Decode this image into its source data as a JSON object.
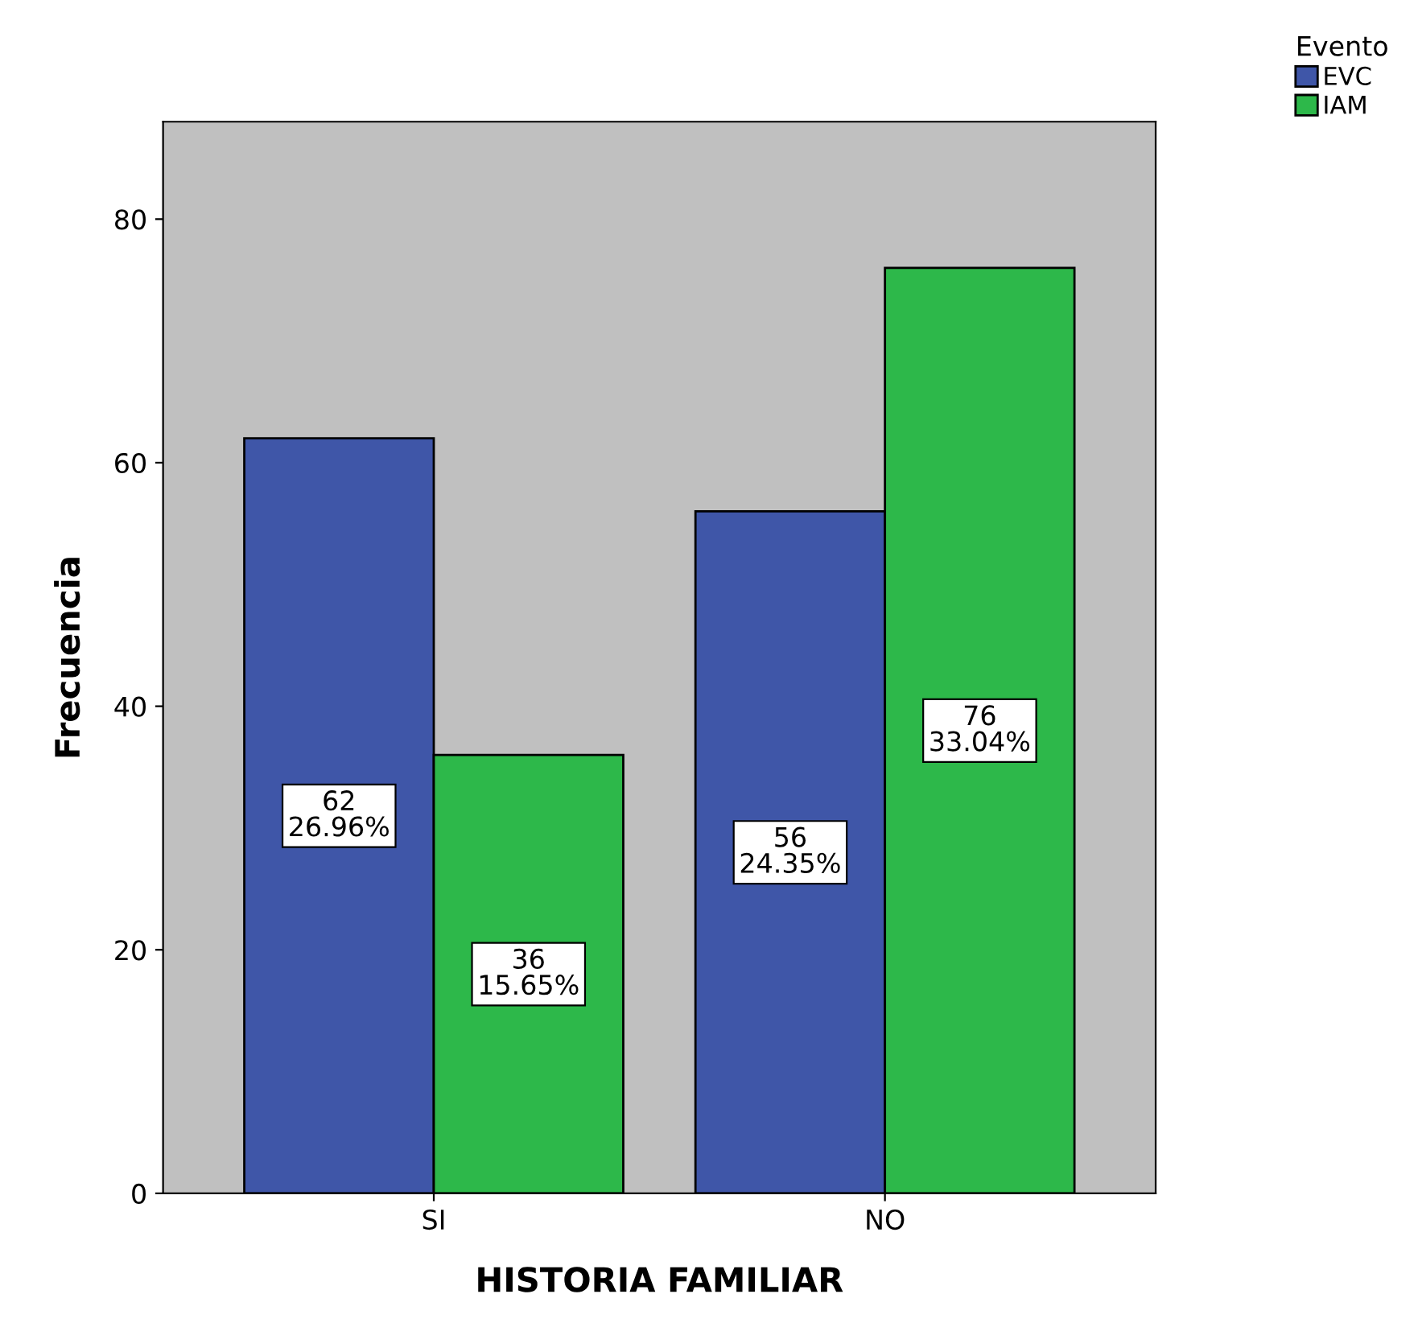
{
  "chart_data": {
    "type": "bar",
    "xlabel": "HISTORIA FAMILIAR",
    "ylabel": "Frecuencia",
    "legend_title": "Evento",
    "legend": "top right",
    "grid": false,
    "categories": [
      "SI",
      "NO"
    ],
    "series": [
      {
        "name": "EVC",
        "color": "#3f56a8",
        "values": [
          62,
          56
        ],
        "value_labels": [
          "62\n26.96%",
          "56\n24.35%"
        ]
      },
      {
        "name": "IAM",
        "color": "#2db84a",
        "values": [
          36,
          76
        ],
        "value_labels": [
          "36\n15.65%",
          "76\n33.04%"
        ]
      }
    ],
    "ylim": [
      0,
      88
    ],
    "yticks": [
      0,
      20,
      40,
      60,
      80
    ]
  }
}
